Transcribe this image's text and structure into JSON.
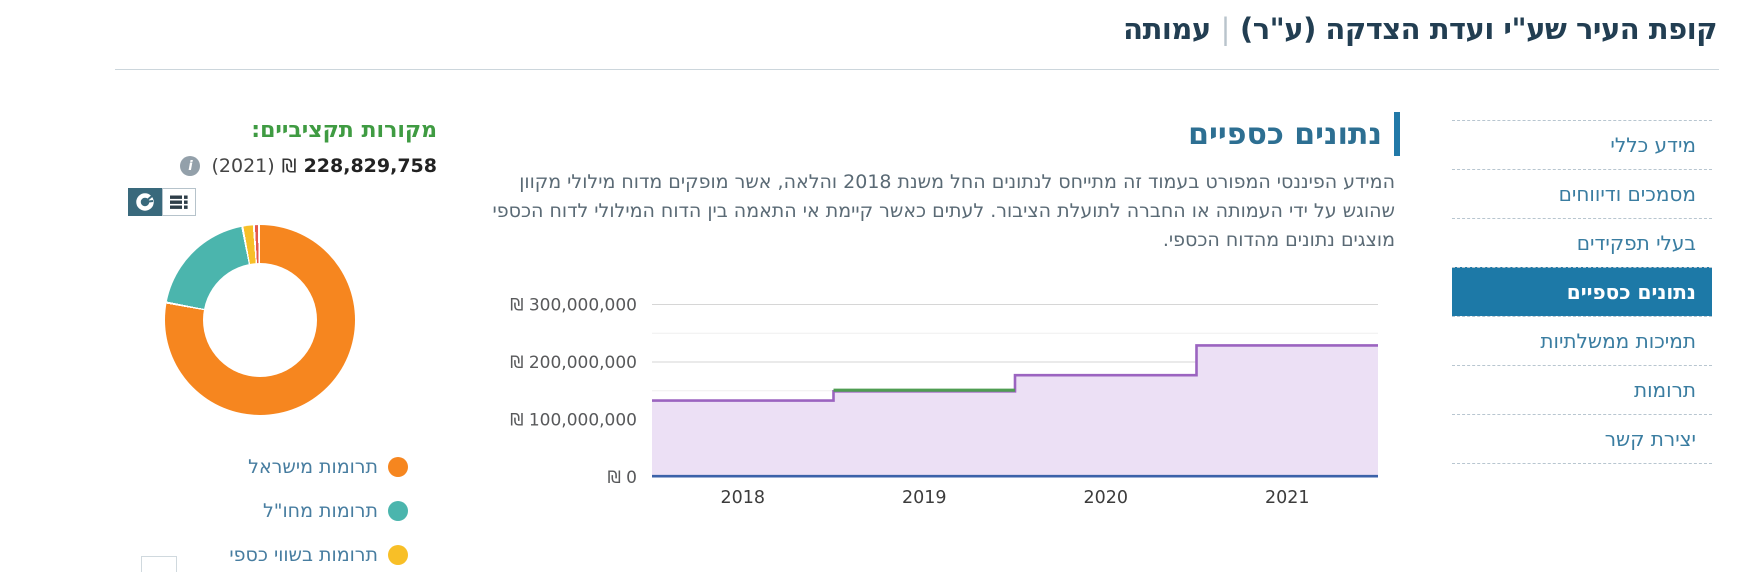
{
  "header": {
    "title": "קופת העיר שע\"י ועדת הצדקה (ע\"ר)",
    "separator": "|",
    "suffix": "עמותה"
  },
  "sidebar": {
    "items": [
      {
        "label": "מידע כללי",
        "active": false
      },
      {
        "label": "מסמכים ודיווחים",
        "active": false
      },
      {
        "label": "בעלי תפקידים",
        "active": false
      },
      {
        "label": "נתונים כספיים",
        "active": true
      },
      {
        "label": "תמיכות ממשלתיות",
        "active": false
      },
      {
        "label": "תרומות",
        "active": false
      },
      {
        "label": "יצירת קשר",
        "active": false
      }
    ]
  },
  "main": {
    "heading": "נתונים כספיים",
    "paragraph": "המידע הפיננסי המפורט בעמוד זה מתייחס לנתונים החל משנת 2018 והלאה, אשר מופקים מדוח מילולי מקוון שהוגש על ידי העמותה או החברה לתועלת הציבור. לעתים כאשר קיימת אי התאמה בין הדוח המילולי לדוח הכספי מוצגים נתונים מהדוח הכספי."
  },
  "budget_sources": {
    "heading": "מקורות תקציביים:",
    "amount": "228,829,758",
    "currency": "₪",
    "year": "(2021)"
  },
  "icons": {
    "info": "i",
    "donut_view": "donut-chart-icon",
    "table_view": "table-icon"
  },
  "colors": {
    "accent_blue": "#1d79a7",
    "heading_blue": "#2d6f92",
    "green_heading": "#3f9b42"
  },
  "chart_data": [
    {
      "type": "area",
      "step": true,
      "x_categories": [
        "2018",
        "2019",
        "2020",
        "2021"
      ],
      "y_ticks": [
        {
          "value": 0,
          "label": "₪ 0"
        },
        {
          "value": 100000000,
          "label": "₪ 100,000,000"
        },
        {
          "value": 200000000,
          "label": "₪ 200,000,000"
        },
        {
          "value": 300000000,
          "label": "₪ 300,000,000"
        }
      ],
      "y_minor_ticks": [
        50000000,
        150000000,
        250000000
      ],
      "ylim": [
        0,
        320000000
      ],
      "grid": true,
      "legend_position": "none",
      "series": [
        {
          "name": "purple-area",
          "color": "#9b64c0",
          "fill": "#ece0f5",
          "values": [
            133000000,
            149000000,
            177000000,
            228829758
          ]
        },
        {
          "name": "green-line",
          "color": "#4f9d52",
          "values": [
            null,
            151000000,
            null,
            null
          ]
        },
        {
          "name": "blue-line",
          "color": "#3b62a9",
          "values": [
            1500000,
            1500000,
            1500000,
            1500000
          ]
        }
      ]
    },
    {
      "type": "pie",
      "donut": true,
      "year": "2021",
      "total": "228,829,758",
      "slices": [
        {
          "label": "תרומות מישראל",
          "color": "#f6861f",
          "percent": 78.5
        },
        {
          "label": "תרומות מחו\"ל",
          "color": "#4bb5ad",
          "percent": 18.9
        },
        {
          "label": "תרומות בשווי כספי",
          "color": "#f8bf27",
          "percent": 1.6
        },
        {
          "label": "",
          "color": "#e4584c",
          "percent": 0.5
        }
      ],
      "legend_position": "bottom"
    }
  ]
}
